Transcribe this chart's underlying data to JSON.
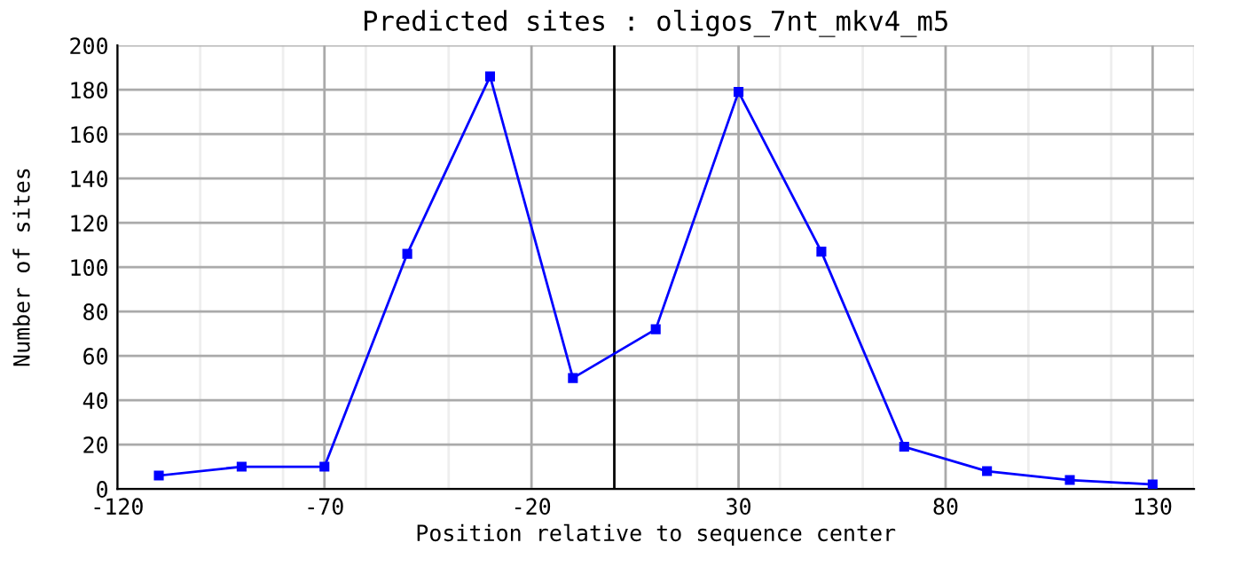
{
  "chart_data": {
    "type": "line",
    "title": "Predicted sites : oligos_7nt_mkv4_m5",
    "xlabel": "Position relative to sequence center",
    "ylabel": "Number of sites",
    "x": [
      -110,
      -90,
      -70,
      -50,
      -30,
      -10,
      10,
      30,
      50,
      70,
      90,
      110,
      130
    ],
    "series": [
      {
        "color": "#0000ff",
        "values": [
          6,
          10,
          10,
          106,
          186,
          50,
          72,
          179,
          107,
          19,
          8,
          4,
          2
        ]
      }
    ],
    "xlim": [
      -120,
      140
    ],
    "xticks": [
      -120,
      {
        "value": -100,
        "label": null
      },
      {
        "value": -80,
        "label": null
      },
      -70,
      {
        "value": -60,
        "label": null
      },
      {
        "value": -40,
        "label": null
      },
      -20,
      {
        "value": 20,
        "label": null
      },
      30,
      {
        "value": 40,
        "label": null
      },
      {
        "value": 60,
        "label": null
      },
      80,
      {
        "value": 100,
        "label": null
      },
      {
        "value": 120,
        "label": null
      },
      130,
      {
        "value": 140,
        "label": null
      }
    ],
    "ylim": [
      0,
      200
    ],
    "yticks": [
      0,
      20,
      40,
      60,
      80,
      100,
      120,
      140,
      160,
      180,
      200
    ],
    "ref_lines": [
      {
        "axis": "x",
        "value": 0,
        "color": "#000000"
      }
    ],
    "grid": true,
    "marker": "square",
    "line_style": "solid"
  }
}
